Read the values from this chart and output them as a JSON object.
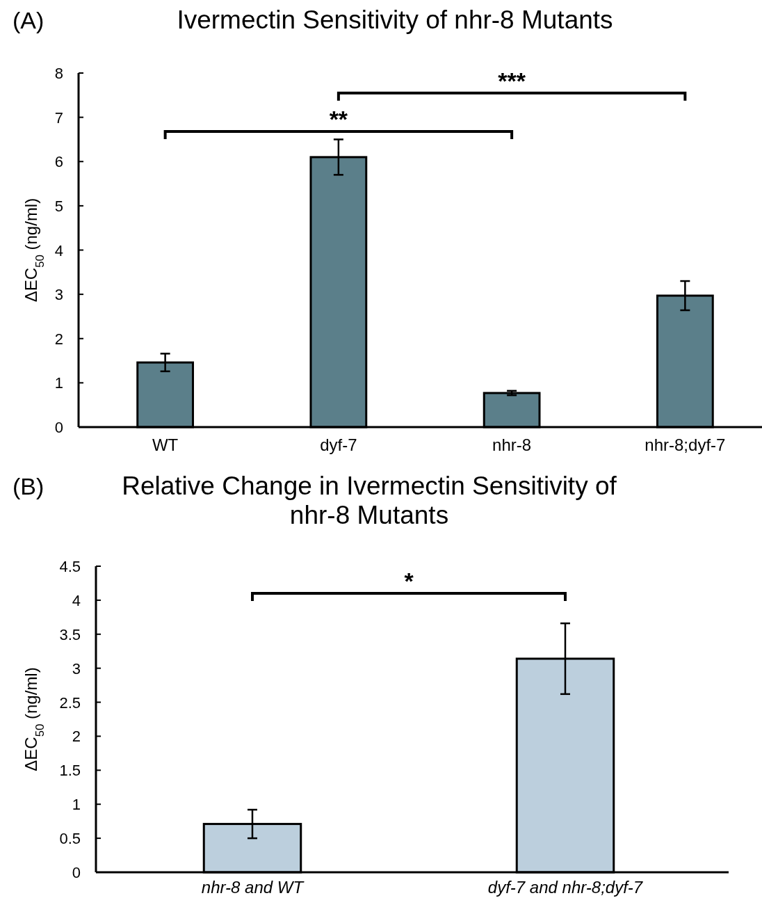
{
  "chart_data": [
    {
      "type": "bar",
      "title": "Ivermectin Sensitivity of nhr-8 Mutants",
      "ylabel": "ΔEC$_{50}$ (ng/ml)",
      "categories": [
        "WT",
        "dyf-7",
        "nhr-8",
        "nhr-8;dyf-7"
      ],
      "values": [
        1.46,
        6.1,
        0.77,
        2.97
      ],
      "errors": [
        0.2,
        0.4,
        0.05,
        0.33
      ],
      "color": "#5b7f8a",
      "ylim": [
        0,
        8
      ],
      "yticks": [
        0,
        1,
        2,
        3,
        4,
        5,
        6,
        7,
        8
      ],
      "grid": false,
      "annotations": [
        "(A)",
        "**",
        "***"
      ]
    },
    {
      "type": "bar",
      "title": "Relative Change in Ivermectin Sensitivity of nhr-8 Mutants",
      "ylabel": "ΔEC$_{50}$ (ng/ml)",
      "categories": [
        "nhr-8 and WT",
        "dyf-7 and nhr-8;dyf-7"
      ],
      "values": [
        0.71,
        3.14
      ],
      "errors": [
        0.21,
        0.52
      ],
      "color": "#bccfdd",
      "ylim": [
        0,
        4.5
      ],
      "yticks": [
        0,
        0.5,
        1,
        1.5,
        2,
        2.5,
        3,
        3.5,
        4,
        4.5
      ],
      "grid": false,
      "annotations": [
        "(B)",
        "*"
      ]
    }
  ]
}
